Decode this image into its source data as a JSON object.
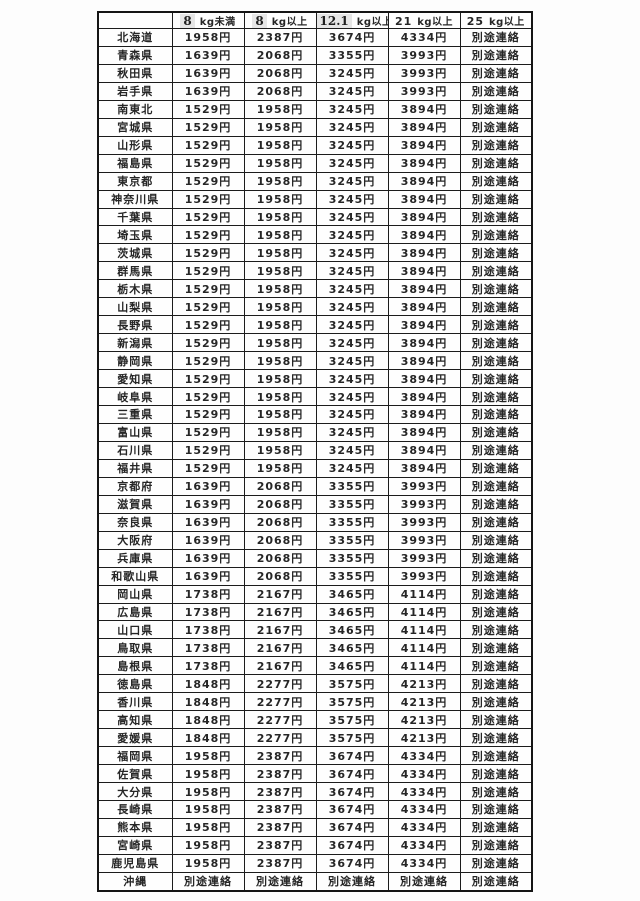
{
  "table": {
    "name": "prefecture-shipping-rate-table",
    "headers": [
      {
        "weight": "",
        "unit": "",
        "patched": false
      },
      {
        "weight": "8",
        "unit": "kg未満",
        "patched": true
      },
      {
        "weight": "8",
        "unit": "kg以上",
        "patched": true
      },
      {
        "weight": "12.1",
        "unit": "kg以上",
        "patched": true
      },
      {
        "weight": "21",
        "unit": "kg以上",
        "patched": false
      },
      {
        "weight": "25",
        "unit": "kg以上",
        "patched": false
      }
    ],
    "rows": [
      {
        "region": "北海道",
        "prices": [
          "1958円",
          "2387円",
          "3674円",
          "4334円",
          "別途連絡"
        ]
      },
      {
        "region": "青森県",
        "prices": [
          "1639円",
          "2068円",
          "3355円",
          "3993円",
          "別途連絡"
        ]
      },
      {
        "region": "秋田県",
        "prices": [
          "1639円",
          "2068円",
          "3245円",
          "3993円",
          "別途連絡"
        ]
      },
      {
        "region": "岩手県",
        "prices": [
          "1639円",
          "2068円",
          "3245円",
          "3993円",
          "別途連絡"
        ]
      },
      {
        "region": "南東北",
        "prices": [
          "1529円",
          "1958円",
          "3245円",
          "3894円",
          "別途連絡"
        ]
      },
      {
        "region": "宮城県",
        "prices": [
          "1529円",
          "1958円",
          "3245円",
          "3894円",
          "別途連絡"
        ]
      },
      {
        "region": "山形県",
        "prices": [
          "1529円",
          "1958円",
          "3245円",
          "3894円",
          "別途連絡"
        ]
      },
      {
        "region": "福島県",
        "prices": [
          "1529円",
          "1958円",
          "3245円",
          "3894円",
          "別途連絡"
        ]
      },
      {
        "region": "東京都",
        "prices": [
          "1529円",
          "1958円",
          "3245円",
          "3894円",
          "別途連絡"
        ]
      },
      {
        "region": "神奈川県",
        "prices": [
          "1529円",
          "1958円",
          "3245円",
          "3894円",
          "別途連絡"
        ]
      },
      {
        "region": "千葉県",
        "prices": [
          "1529円",
          "1958円",
          "3245円",
          "3894円",
          "別途連絡"
        ]
      },
      {
        "region": "埼玉県",
        "prices": [
          "1529円",
          "1958円",
          "3245円",
          "3894円",
          "別途連絡"
        ]
      },
      {
        "region": "茨城県",
        "prices": [
          "1529円",
          "1958円",
          "3245円",
          "3894円",
          "別途連絡"
        ]
      },
      {
        "region": "群馬県",
        "prices": [
          "1529円",
          "1958円",
          "3245円",
          "3894円",
          "別途連絡"
        ]
      },
      {
        "region": "栃木県",
        "prices": [
          "1529円",
          "1958円",
          "3245円",
          "3894円",
          "別途連絡"
        ]
      },
      {
        "region": "山梨県",
        "prices": [
          "1529円",
          "1958円",
          "3245円",
          "3894円",
          "別途連絡"
        ]
      },
      {
        "region": "長野県",
        "prices": [
          "1529円",
          "1958円",
          "3245円",
          "3894円",
          "別途連絡"
        ]
      },
      {
        "region": "新潟県",
        "prices": [
          "1529円",
          "1958円",
          "3245円",
          "3894円",
          "別途連絡"
        ]
      },
      {
        "region": "静岡県",
        "prices": [
          "1529円",
          "1958円",
          "3245円",
          "3894円",
          "別途連絡"
        ]
      },
      {
        "region": "愛知県",
        "prices": [
          "1529円",
          "1958円",
          "3245円",
          "3894円",
          "別途連絡"
        ]
      },
      {
        "region": "岐阜県",
        "prices": [
          "1529円",
          "1958円",
          "3245円",
          "3894円",
          "別途連絡"
        ]
      },
      {
        "region": "三重県",
        "prices": [
          "1529円",
          "1958円",
          "3245円",
          "3894円",
          "別途連絡"
        ]
      },
      {
        "region": "富山県",
        "prices": [
          "1529円",
          "1958円",
          "3245円",
          "3894円",
          "別途連絡"
        ]
      },
      {
        "region": "石川県",
        "prices": [
          "1529円",
          "1958円",
          "3245円",
          "3894円",
          "別途連絡"
        ]
      },
      {
        "region": "福井県",
        "prices": [
          "1529円",
          "1958円",
          "3245円",
          "3894円",
          "別途連絡"
        ]
      },
      {
        "region": "京都府",
        "prices": [
          "1639円",
          "2068円",
          "3355円",
          "3993円",
          "別途連絡"
        ]
      },
      {
        "region": "滋賀県",
        "prices": [
          "1639円",
          "2068円",
          "3355円",
          "3993円",
          "別途連絡"
        ]
      },
      {
        "region": "奈良県",
        "prices": [
          "1639円",
          "2068円",
          "3355円",
          "3993円",
          "別途連絡"
        ]
      },
      {
        "region": "大阪府",
        "prices": [
          "1639円",
          "2068円",
          "3355円",
          "3993円",
          "別途連絡"
        ]
      },
      {
        "region": "兵庫県",
        "prices": [
          "1639円",
          "2068円",
          "3355円",
          "3993円",
          "別途連絡"
        ]
      },
      {
        "region": "和歌山県",
        "prices": [
          "1639円",
          "2068円",
          "3355円",
          "3993円",
          "別途連絡"
        ]
      },
      {
        "region": "岡山県",
        "prices": [
          "1738円",
          "2167円",
          "3465円",
          "4114円",
          "別途連絡"
        ]
      },
      {
        "region": "広島県",
        "prices": [
          "1738円",
          "2167円",
          "3465円",
          "4114円",
          "別途連絡"
        ]
      },
      {
        "region": "山口県",
        "prices": [
          "1738円",
          "2167円",
          "3465円",
          "4114円",
          "別途連絡"
        ]
      },
      {
        "region": "鳥取県",
        "prices": [
          "1738円",
          "2167円",
          "3465円",
          "4114円",
          "別途連絡"
        ]
      },
      {
        "region": "島根県",
        "prices": [
          "1738円",
          "2167円",
          "3465円",
          "4114円",
          "別途連絡"
        ]
      },
      {
        "region": "徳島県",
        "prices": [
          "1848円",
          "2277円",
          "3575円",
          "4213円",
          "別途連絡"
        ]
      },
      {
        "region": "香川県",
        "prices": [
          "1848円",
          "2277円",
          "3575円",
          "4213円",
          "別途連絡"
        ]
      },
      {
        "region": "高知県",
        "prices": [
          "1848円",
          "2277円",
          "3575円",
          "4213円",
          "別途連絡"
        ]
      },
      {
        "region": "愛媛県",
        "prices": [
          "1848円",
          "2277円",
          "3575円",
          "4213円",
          "別途連絡"
        ]
      },
      {
        "region": "福岡県",
        "prices": [
          "1958円",
          "2387円",
          "3674円",
          "4334円",
          "別途連絡"
        ]
      },
      {
        "region": "佐賀県",
        "prices": [
          "1958円",
          "2387円",
          "3674円",
          "4334円",
          "別途連絡"
        ]
      },
      {
        "region": "大分県",
        "prices": [
          "1958円",
          "2387円",
          "3674円",
          "4334円",
          "別途連絡"
        ]
      },
      {
        "region": "長崎県",
        "prices": [
          "1958円",
          "2387円",
          "3674円",
          "4334円",
          "別途連絡"
        ]
      },
      {
        "region": "熊本県",
        "prices": [
          "1958円",
          "2387円",
          "3674円",
          "4334円",
          "別途連絡"
        ]
      },
      {
        "region": "宮崎県",
        "prices": [
          "1958円",
          "2387円",
          "3674円",
          "4334円",
          "別途連絡"
        ]
      },
      {
        "region": "鹿児島県",
        "prices": [
          "1958円",
          "2387円",
          "3674円",
          "4334円",
          "別途連絡"
        ]
      },
      {
        "region": "沖縄",
        "prices": [
          "別途連絡",
          "別途連絡",
          "別途連絡",
          "別途連絡",
          "別途連絡"
        ]
      }
    ],
    "colors": {
      "border": "#1c1c1c",
      "text": "#262626",
      "patched_bg": "#e6e6e6",
      "background": "#fdfdfd"
    }
  }
}
